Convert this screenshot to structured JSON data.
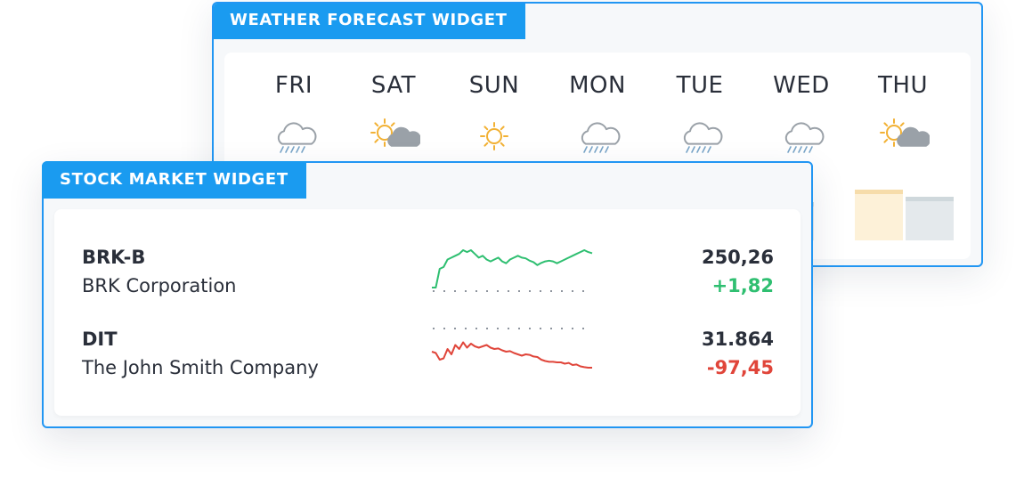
{
  "weather_widget": {
    "title": "WEATHER FORECAST WIDGET",
    "days": [
      {
        "label": "FRI",
        "icon": "rain-cloud-icon"
      },
      {
        "label": "SAT",
        "icon": "partly-cloudy-icon"
      },
      {
        "label": "SUN",
        "icon": "sun-icon"
      },
      {
        "label": "MON",
        "icon": "rain-cloud-icon"
      },
      {
        "label": "TUE",
        "icon": "rain-cloud-icon"
      },
      {
        "label": "WED",
        "icon": "rain-cloud-icon"
      },
      {
        "label": "THU",
        "icon": "partly-cloudy-icon"
      }
    ],
    "colors": {
      "accent": "#1a9bf0",
      "cloud": "#9aa1a8",
      "rain": "#7aa6c9",
      "sun": "#f2b134",
      "bar": "#e4e9ec",
      "bar_top": "#cfd8dc",
      "bar_highlight": "#fdf1d8",
      "bar_highlight_top": "#f6dcaa"
    }
  },
  "stock_widget": {
    "title": "STOCK MARKET WIDGET",
    "stocks": [
      {
        "ticker": "BRK-B",
        "company": "BRK Corporation",
        "price": "250,26",
        "change": "+1,82",
        "trend": "up",
        "color": "#2fbf71",
        "series": [
          0,
          0,
          0.5,
          0.55,
          0.75,
          0.8,
          0.85,
          0.9,
          1.0,
          0.95,
          1.0,
          0.9,
          0.8,
          0.85,
          0.75,
          0.7,
          0.75,
          0.8,
          0.7,
          0.65,
          0.75,
          0.8,
          0.85,
          0.8,
          0.78,
          0.72,
          0.68,
          0.6,
          0.66,
          0.7,
          0.72,
          0.7,
          0.65,
          0.7,
          0.75,
          0.8,
          0.85,
          0.9,
          0.95,
          1.0,
          0.95,
          0.92
        ]
      },
      {
        "ticker": "DIT",
        "company": "The John Smith Company",
        "price": "31.864",
        "change": "-97,45",
        "trend": "down",
        "color": "#e0453a",
        "series": [
          0.6,
          0.55,
          0.3,
          0.35,
          0.7,
          0.5,
          0.85,
          0.7,
          0.95,
          0.75,
          0.9,
          0.8,
          0.75,
          0.8,
          0.85,
          0.75,
          0.7,
          0.72,
          0.65,
          0.6,
          0.62,
          0.55,
          0.5,
          0.45,
          0.5,
          0.48,
          0.42,
          0.4,
          0.3,
          0.25,
          0.22,
          0.22,
          0.2,
          0.2,
          0.15,
          0.18,
          0.1,
          0.12,
          0.05,
          0.02,
          0.0,
          0.0
        ]
      }
    ]
  }
}
